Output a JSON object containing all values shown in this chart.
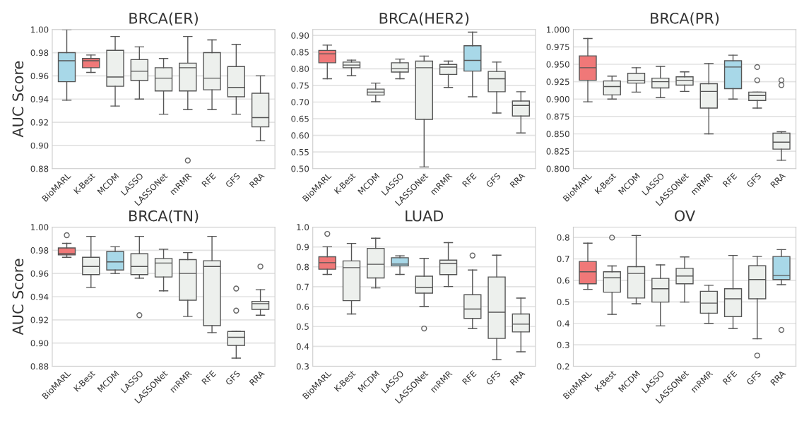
{
  "chart_data": [
    {
      "type": "box",
      "title": "BRCA(ER)",
      "ylabel": "AUC Score",
      "grid": "y",
      "categories": [
        "BioMARL",
        "K-Best",
        "MCDM",
        "LASSO",
        "LASSONet",
        "mRMR",
        "RFE",
        "GFS",
        "RRA"
      ],
      "colors": [
        "#a8d8e8",
        "#f07878",
        "#edf0ed",
        "#edf0ed",
        "#edf0ed",
        "#edf0ed",
        "#edf0ed",
        "#edf0ed",
        "#edf0ed"
      ],
      "ylim": [
        0.88,
        1.0
      ],
      "yticks": [
        {
          "value": 0.88,
          "label": "0.88"
        },
        {
          "value": 0.9,
          "label": "0.90"
        },
        {
          "value": 0.92,
          "label": "0.92"
        },
        {
          "value": 0.94,
          "label": "0.94"
        },
        {
          "value": 0.96,
          "label": "0.96"
        },
        {
          "value": 0.98,
          "label": "0.98"
        },
        {
          "value": 1.0,
          "label": "1.00"
        }
      ],
      "boxes": [
        {
          "low": 0.939,
          "q1": 0.955,
          "median": 0.973,
          "q3": 0.98,
          "high": 1.0
        },
        {
          "low": 0.963,
          "q1": 0.967,
          "median": 0.973,
          "q3": 0.975,
          "high": 0.978
        },
        {
          "low": 0.934,
          "q1": 0.951,
          "median": 0.959,
          "q3": 0.982,
          "high": 0.994
        },
        {
          "low": 0.94,
          "q1": 0.956,
          "median": 0.964,
          "q3": 0.974,
          "high": 0.985
        },
        {
          "low": 0.927,
          "q1": 0.947,
          "median": 0.958,
          "q3": 0.967,
          "high": 0.975
        },
        {
          "low": 0.931,
          "q1": 0.947,
          "median": 0.967,
          "q3": 0.971,
          "high": 0.994,
          "outliers": [
            0.887
          ]
        },
        {
          "low": 0.931,
          "q1": 0.948,
          "median": 0.958,
          "q3": 0.98,
          "high": 0.991
        },
        {
          "low": 0.927,
          "q1": 0.942,
          "median": 0.95,
          "q3": 0.968,
          "high": 0.987
        },
        {
          "low": 0.904,
          "q1": 0.916,
          "median": 0.924,
          "q3": 0.945,
          "high": 0.96
        }
      ]
    },
    {
      "type": "box",
      "title": "BRCA(HER2)",
      "grid": "y",
      "categories": [
        "BioMARL",
        "K-Best",
        "MCDM",
        "LASSO",
        "LASSONet",
        "mRMR",
        "RFE",
        "GFS",
        "RRA"
      ],
      "colors": [
        "#f07878",
        "#edf0ed",
        "#edf0ed",
        "#edf0ed",
        "#edf0ed",
        "#edf0ed",
        "#a8d8e8",
        "#edf0ed",
        "#edf0ed"
      ],
      "ylim": [
        0.5,
        0.918
      ],
      "yticks": [
        {
          "value": 0.5,
          "label": "0.50"
        },
        {
          "value": 0.55,
          "label": "0.55"
        },
        {
          "value": 0.6,
          "label": "0.60"
        },
        {
          "value": 0.65,
          "label": "0.65"
        },
        {
          "value": 0.7,
          "label": "0.70"
        },
        {
          "value": 0.75,
          "label": "0.75"
        },
        {
          "value": 0.8,
          "label": "0.80"
        },
        {
          "value": 0.85,
          "label": "0.85"
        },
        {
          "value": 0.9,
          "label": "0.90"
        }
      ],
      "boxes": [
        {
          "low": 0.77,
          "q1": 0.818,
          "median": 0.845,
          "q3": 0.855,
          "high": 0.871
        },
        {
          "low": 0.779,
          "q1": 0.803,
          "median": 0.811,
          "q3": 0.82,
          "high": 0.826
        },
        {
          "low": 0.701,
          "q1": 0.721,
          "median": 0.73,
          "q3": 0.739,
          "high": 0.757
        },
        {
          "low": 0.77,
          "q1": 0.79,
          "median": 0.8,
          "q3": 0.818,
          "high": 0.829
        },
        {
          "low": 0.505,
          "q1": 0.648,
          "median": 0.803,
          "q3": 0.823,
          "high": 0.838
        },
        {
          "low": 0.744,
          "q1": 0.783,
          "median": 0.805,
          "q3": 0.813,
          "high": 0.823
        },
        {
          "low": 0.716,
          "q1": 0.793,
          "median": 0.825,
          "q3": 0.869,
          "high": 0.91
        },
        {
          "low": 0.667,
          "q1": 0.731,
          "median": 0.77,
          "q3": 0.792,
          "high": 0.82
        },
        {
          "low": 0.607,
          "q1": 0.658,
          "median": 0.69,
          "q3": 0.703,
          "high": 0.731
        }
      ]
    },
    {
      "type": "box",
      "title": "BRCA(PR)",
      "grid": "y",
      "categories": [
        "BioMARL",
        "K-Best",
        "MCDM",
        "LASSO",
        "LASSONet",
        "mRMR",
        "RFE",
        "GFS",
        "RRA"
      ],
      "colors": [
        "#f07878",
        "#edf0ed",
        "#edf0ed",
        "#edf0ed",
        "#edf0ed",
        "#edf0ed",
        "#a8d8e8",
        "#edf0ed",
        "#edf0ed"
      ],
      "ylim": [
        0.8,
        1.0
      ],
      "yticks": [
        {
          "value": 0.8,
          "label": "0.800"
        },
        {
          "value": 0.825,
          "label": "0.825"
        },
        {
          "value": 0.85,
          "label": "0.850"
        },
        {
          "value": 0.875,
          "label": "0.875"
        },
        {
          "value": 0.9,
          "label": "0.900"
        },
        {
          "value": 0.925,
          "label": "0.925"
        },
        {
          "value": 0.95,
          "label": "0.950"
        },
        {
          "value": 0.975,
          "label": "0.975"
        },
        {
          "value": 1.0,
          "label": "1.000"
        }
      ],
      "boxes": [
        {
          "low": 0.896,
          "q1": 0.927,
          "median": 0.945,
          "q3": 0.962,
          "high": 0.987
        },
        {
          "low": 0.9,
          "q1": 0.906,
          "median": 0.918,
          "q3": 0.926,
          "high": 0.933
        },
        {
          "low": 0.91,
          "q1": 0.923,
          "median": 0.927,
          "q3": 0.937,
          "high": 0.945
        },
        {
          "low": 0.902,
          "q1": 0.916,
          "median": 0.925,
          "q3": 0.93,
          "high": 0.947
        },
        {
          "low": 0.911,
          "q1": 0.92,
          "median": 0.927,
          "q3": 0.932,
          "high": 0.939
        },
        {
          "low": 0.85,
          "q1": 0.887,
          "median": 0.911,
          "q3": 0.922,
          "high": 0.951
        },
        {
          "low": 0.9,
          "q1": 0.915,
          "median": 0.946,
          "q3": 0.955,
          "high": 0.963
        },
        {
          "low": 0.887,
          "q1": 0.898,
          "median": 0.905,
          "q3": 0.91,
          "high": 0.91,
          "outliers": [
            0.946,
            0.927
          ]
        },
        {
          "low": 0.812,
          "q1": 0.828,
          "median": 0.838,
          "q3": 0.851,
          "high": 0.853,
          "outliers": [
            0.927,
            0.92
          ]
        }
      ]
    },
    {
      "type": "box",
      "title": "BRCA(TN)",
      "ylabel": "AUC Score",
      "grid": "y",
      "categories": [
        "BioMARL",
        "K-Best",
        "MCDM",
        "LASSO",
        "LASSONet",
        "mRMR",
        "RFE",
        "GFS",
        "RRA"
      ],
      "colors": [
        "#f07878",
        "#edf0ed",
        "#a8d8e8",
        "#edf0ed",
        "#edf0ed",
        "#edf0ed",
        "#edf0ed",
        "#edf0ed",
        "#edf0ed"
      ],
      "ylim": [
        0.88,
        1.0
      ],
      "yticks": [
        {
          "value": 0.88,
          "label": "0.88"
        },
        {
          "value": 0.9,
          "label": "0.90"
        },
        {
          "value": 0.92,
          "label": "0.92"
        },
        {
          "value": 0.94,
          "label": "0.94"
        },
        {
          "value": 0.96,
          "label": "0.96"
        },
        {
          "value": 0.98,
          "label": "0.98"
        },
        {
          "value": 1.0,
          "label": "1.00"
        }
      ],
      "boxes": [
        {
          "low": 0.974,
          "q1": 0.976,
          "median": 0.977,
          "q3": 0.982,
          "high": 0.986,
          "outliers": [
            0.993
          ]
        },
        {
          "low": 0.948,
          "q1": 0.959,
          "median": 0.966,
          "q3": 0.974,
          "high": 0.992
        },
        {
          "low": 0.96,
          "q1": 0.963,
          "median": 0.97,
          "q3": 0.979,
          "high": 0.983
        },
        {
          "low": 0.956,
          "q1": 0.959,
          "median": 0.966,
          "q3": 0.977,
          "high": 0.992,
          "outliers": [
            0.924
          ]
        },
        {
          "low": 0.945,
          "q1": 0.957,
          "median": 0.969,
          "q3": 0.973,
          "high": 0.981
        },
        {
          "low": 0.923,
          "q1": 0.937,
          "median": 0.96,
          "q3": 0.972,
          "high": 0.978
        },
        {
          "low": 0.909,
          "q1": 0.915,
          "median": 0.966,
          "q3": 0.971,
          "high": 0.992
        },
        {
          "low": 0.887,
          "q1": 0.898,
          "median": 0.905,
          "q3": 0.91,
          "high": 0.91,
          "outliers": [
            0.947,
            0.928
          ]
        },
        {
          "low": 0.924,
          "q1": 0.929,
          "median": 0.934,
          "q3": 0.936,
          "high": 0.946,
          "outliers": [
            0.966
          ]
        }
      ]
    },
    {
      "type": "box",
      "title": "LUAD",
      "grid": "y",
      "categories": [
        "BioMARL",
        "K-Best",
        "MCDM",
        "LASSO",
        "LASSONet",
        "mRMR",
        "RFE",
        "GFS",
        "RRA"
      ],
      "colors": [
        "#f07878",
        "#edf0ed",
        "#edf0ed",
        "#a8d8e8",
        "#edf0ed",
        "#edf0ed",
        "#edf0ed",
        "#edf0ed",
        "#edf0ed"
      ],
      "ylim": [
        0.3,
        1.0
      ],
      "yticks": [
        0.3,
        0.4,
        0.5,
        0.6,
        0.7,
        0.8,
        0.9,
        {
          "value": 1.0,
          "label": "1.0"
        }
      ],
      "boxes": [
        {
          "low": 0.762,
          "q1": 0.788,
          "median": 0.821,
          "q3": 0.851,
          "high": 0.901,
          "outliers": [
            0.966
          ]
        },
        {
          "low": 0.563,
          "q1": 0.63,
          "median": 0.796,
          "q3": 0.83,
          "high": 0.918
        },
        {
          "low": 0.694,
          "q1": 0.744,
          "median": 0.813,
          "q3": 0.893,
          "high": 0.944
        },
        {
          "low": 0.762,
          "q1": 0.805,
          "median": 0.814,
          "q3": 0.846,
          "high": 0.855
        },
        {
          "low": 0.601,
          "q1": 0.668,
          "median": 0.697,
          "q3": 0.753,
          "high": 0.843,
          "outliers": [
            0.49
          ]
        },
        {
          "low": 0.701,
          "q1": 0.761,
          "median": 0.817,
          "q3": 0.834,
          "high": 0.922
        },
        {
          "low": 0.49,
          "q1": 0.541,
          "median": 0.588,
          "q3": 0.66,
          "high": 0.784,
          "outliers": [
            0.857
          ]
        },
        {
          "low": 0.333,
          "q1": 0.44,
          "median": 0.572,
          "q3": 0.749,
          "high": 0.859
        },
        {
          "low": 0.373,
          "q1": 0.473,
          "median": 0.512,
          "q3": 0.563,
          "high": 0.643
        }
      ]
    },
    {
      "type": "box",
      "title": "OV",
      "grid": "y",
      "categories": [
        "BioMARL",
        "K-Best",
        "MCDM",
        "LASSO",
        "LASSONet",
        "mRMR",
        "RFE",
        "GFS",
        "RRA"
      ],
      "colors": [
        "#f07878",
        "#edf0ed",
        "#edf0ed",
        "#edf0ed",
        "#edf0ed",
        "#edf0ed",
        "#edf0ed",
        "#edf0ed",
        "#a8d8e8"
      ],
      "ylim": [
        0.2,
        0.848
      ],
      "yticks": [
        0.2,
        0.3,
        0.4,
        0.5,
        0.6,
        0.7,
        0.8
      ],
      "boxes": [
        {
          "low": 0.558,
          "q1": 0.584,
          "median": 0.64,
          "q3": 0.688,
          "high": 0.773
        },
        {
          "low": 0.442,
          "q1": 0.545,
          "median": 0.612,
          "q3": 0.64,
          "high": 0.667,
          "outliers": [
            0.799
          ]
        },
        {
          "low": 0.491,
          "q1": 0.518,
          "median": 0.632,
          "q3": 0.664,
          "high": 0.809
        },
        {
          "low": 0.388,
          "q1": 0.499,
          "median": 0.561,
          "q3": 0.609,
          "high": 0.672
        },
        {
          "low": 0.499,
          "q1": 0.584,
          "median": 0.62,
          "q3": 0.656,
          "high": 0.709
        },
        {
          "low": 0.4,
          "q1": 0.447,
          "median": 0.494,
          "q3": 0.549,
          "high": 0.577
        },
        {
          "low": 0.376,
          "q1": 0.431,
          "median": 0.514,
          "q3": 0.561,
          "high": 0.716
        },
        {
          "low": 0.328,
          "q1": 0.514,
          "median": 0.604,
          "q3": 0.668,
          "high": 0.711,
          "outliers": [
            0.25
          ]
        },
        {
          "low": 0.58,
          "q1": 0.604,
          "median": 0.623,
          "q3": 0.711,
          "high": 0.743,
          "outliers": [
            0.369
          ]
        }
      ]
    }
  ]
}
